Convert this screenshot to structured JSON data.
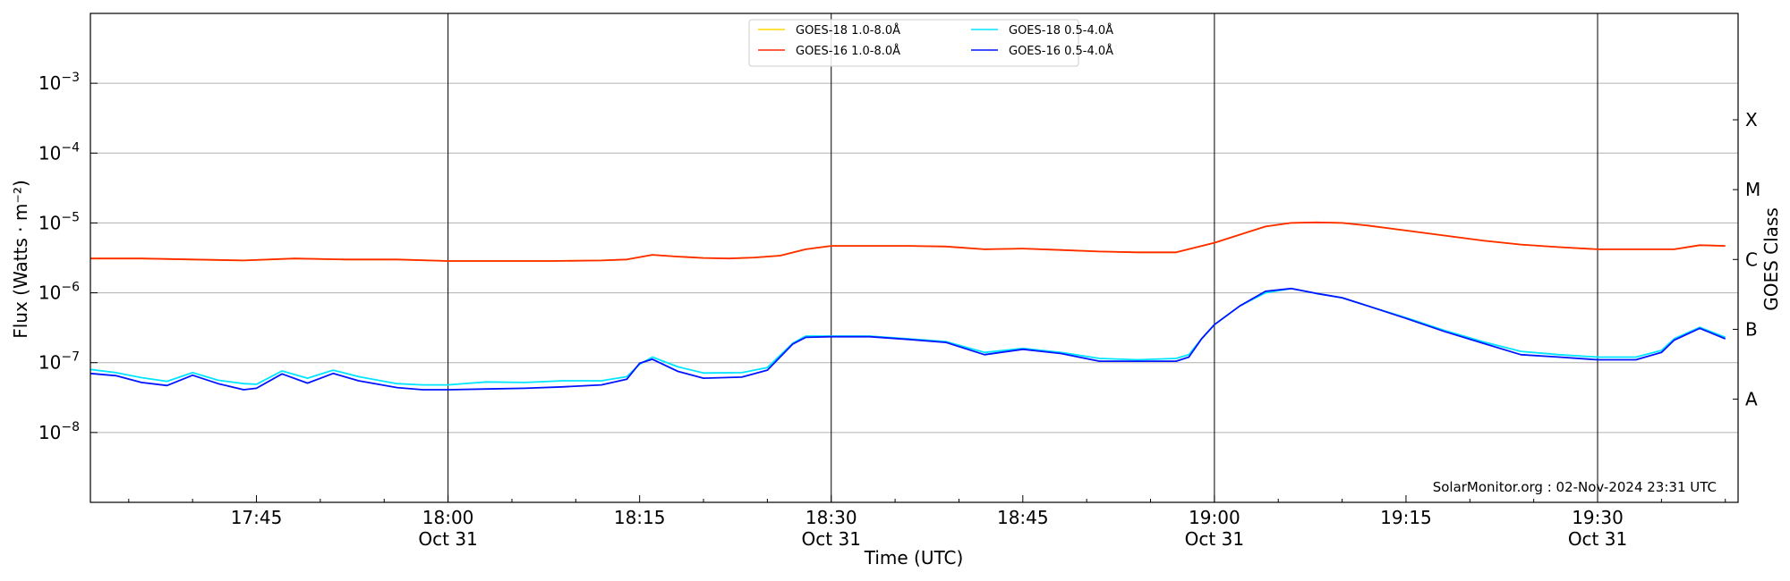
{
  "chart_data": {
    "type": "line",
    "y_scale": "log",
    "ylim": [
      1e-09,
      0.01
    ],
    "xlim": [
      "17:32",
      "19:41"
    ],
    "ylabel": "Flux (Watts · m⁻²)",
    "ylabel_right": "GOES Class",
    "xlabel": "Time (UTC)",
    "credit": "SolarMonitor.org : 02-Nov-2024 23:31 UTC",
    "grid": "horizontal at decades 1e-8 to 1e-3; vertical at 18:00, 18:30, 19:00, 19:30",
    "legend_position": "top-center",
    "x_ticks": [
      {
        "time": "17:45",
        "label": "17:45",
        "sublabel": ""
      },
      {
        "time": "18:00",
        "label": "18:00",
        "sublabel": "Oct 31"
      },
      {
        "time": "18:15",
        "label": "18:15",
        "sublabel": ""
      },
      {
        "time": "18:30",
        "label": "18:30",
        "sublabel": "Oct 31"
      },
      {
        "time": "18:45",
        "label": "18:45",
        "sublabel": ""
      },
      {
        "time": "19:00",
        "label": "19:00",
        "sublabel": "Oct 31"
      },
      {
        "time": "19:15",
        "label": "19:15",
        "sublabel": ""
      },
      {
        "time": "19:30",
        "label": "19:30",
        "sublabel": "Oct 31"
      }
    ],
    "y_ticks": [
      {
        "value": 1e-08,
        "base": "10",
        "exp": "−8"
      },
      {
        "value": 1e-07,
        "base": "10",
        "exp": "−7"
      },
      {
        "value": 1e-06,
        "base": "10",
        "exp": "−6"
      },
      {
        "value": 1e-05,
        "base": "10",
        "exp": "−5"
      },
      {
        "value": 0.0001,
        "base": "10",
        "exp": "−4"
      },
      {
        "value": 0.001,
        "base": "10",
        "exp": "−3"
      }
    ],
    "goes_classes": [
      {
        "label": "A",
        "flux": 3e-08
      },
      {
        "label": "B",
        "flux": 3e-07
      },
      {
        "label": "C",
        "flux": 3e-06
      },
      {
        "label": "M",
        "flux": 3e-05
      },
      {
        "label": "X",
        "flux": 0.0003
      }
    ],
    "series": [
      {
        "name": "GOES-18 1.0-8.0Å",
        "color": "#ffd700",
        "x": [
          "17:32",
          "17:36",
          "17:40",
          "17:44",
          "17:48",
          "17:52",
          "17:56",
          "18:00",
          "18:04",
          "18:08",
          "18:12",
          "18:14",
          "18:16",
          "18:18",
          "18:20",
          "18:22",
          "18:24",
          "18:26",
          "18:28",
          "18:30",
          "18:33",
          "18:36",
          "18:39",
          "18:42",
          "18:45",
          "18:48",
          "18:51",
          "18:54",
          "18:57",
          "19:00",
          "19:02",
          "19:04",
          "19:06",
          "19:08",
          "19:10",
          "19:12",
          "19:15",
          "19:18",
          "19:21",
          "19:24",
          "19:27",
          "19:30",
          "19:33",
          "19:36",
          "19:38",
          "19:40"
        ],
        "y": [
          3.1e-06,
          3.1e-06,
          3e-06,
          2.9e-06,
          3.1e-06,
          3e-06,
          3e-06,
          2.85e-06,
          2.85e-06,
          2.85e-06,
          2.9e-06,
          3e-06,
          3.5e-06,
          3.3e-06,
          3.15e-06,
          3.1e-06,
          3.2e-06,
          3.4e-06,
          4.2e-06,
          4.7e-06,
          4.7e-06,
          4.7e-06,
          4.6e-06,
          4.2e-06,
          4.3e-06,
          4.1e-06,
          3.9e-06,
          3.8e-06,
          3.8e-06,
          5.2e-06,
          6.8e-06,
          8.9e-06,
          1e-05,
          1.02e-05,
          1e-05,
          9.2e-06,
          7.8e-06,
          6.6e-06,
          5.6e-06,
          4.9e-06,
          4.5e-06,
          4.2e-06,
          4.2e-06,
          4.2e-06,
          4.8e-06,
          4.7e-06
        ]
      },
      {
        "name": "GOES-16 1.0-8.0Å",
        "color": "#ff2a00",
        "x": [
          "17:32",
          "17:36",
          "17:40",
          "17:44",
          "17:48",
          "17:52",
          "17:56",
          "18:00",
          "18:04",
          "18:08",
          "18:12",
          "18:14",
          "18:16",
          "18:18",
          "18:20",
          "18:22",
          "18:24",
          "18:26",
          "18:28",
          "18:30",
          "18:33",
          "18:36",
          "18:39",
          "18:42",
          "18:45",
          "18:48",
          "18:51",
          "18:54",
          "18:57",
          "19:00",
          "19:02",
          "19:04",
          "19:06",
          "19:08",
          "19:10",
          "19:12",
          "19:15",
          "19:18",
          "19:21",
          "19:24",
          "19:27",
          "19:30",
          "19:33",
          "19:36",
          "19:38",
          "19:40"
        ],
        "y": [
          3.1e-06,
          3.1e-06,
          3e-06,
          2.9e-06,
          3.1e-06,
          3e-06,
          3e-06,
          2.85e-06,
          2.85e-06,
          2.85e-06,
          2.9e-06,
          3e-06,
          3.5e-06,
          3.3e-06,
          3.15e-06,
          3.1e-06,
          3.2e-06,
          3.4e-06,
          4.2e-06,
          4.7e-06,
          4.7e-06,
          4.7e-06,
          4.6e-06,
          4.2e-06,
          4.3e-06,
          4.1e-06,
          3.9e-06,
          3.8e-06,
          3.8e-06,
          5.2e-06,
          6.8e-06,
          8.9e-06,
          1e-05,
          1.02e-05,
          1e-05,
          9.2e-06,
          7.8e-06,
          6.6e-06,
          5.6e-06,
          4.9e-06,
          4.5e-06,
          4.2e-06,
          4.2e-06,
          4.2e-06,
          4.8e-06,
          4.7e-06
        ]
      },
      {
        "name": "GOES-18 0.5-4.0Å",
        "color": "#00e5ff",
        "x": [
          "17:32",
          "17:34",
          "17:36",
          "17:38",
          "17:40",
          "17:42",
          "17:44",
          "17:45",
          "17:47",
          "17:49",
          "17:51",
          "17:53",
          "17:56",
          "17:58",
          "18:00",
          "18:03",
          "18:06",
          "18:09",
          "18:12",
          "18:14",
          "18:15",
          "18:16",
          "18:18",
          "18:20",
          "18:23",
          "18:25",
          "18:27",
          "18:28",
          "18:30",
          "18:33",
          "18:36",
          "18:39",
          "18:42",
          "18:45",
          "18:48",
          "18:51",
          "18:54",
          "18:57",
          "18:58",
          "18:59",
          "19:00",
          "19:02",
          "19:04",
          "19:06",
          "19:08",
          "19:10",
          "19:12",
          "19:15",
          "19:18",
          "19:21",
          "19:24",
          "19:27",
          "19:30",
          "19:33",
          "19:35",
          "19:36",
          "19:38",
          "19:40"
        ],
        "y": [
          8e-08,
          7.2e-08,
          6.1e-08,
          5.4e-08,
          7.2e-08,
          5.6e-08,
          5e-08,
          4.9e-08,
          7.6e-08,
          6e-08,
          7.8e-08,
          6.3e-08,
          5e-08,
          4.8e-08,
          4.8e-08,
          5.3e-08,
          5.2e-08,
          5.5e-08,
          5.5e-08,
          6.3e-08,
          9.5e-08,
          1.2e-07,
          8.7e-08,
          7.1e-08,
          7.2e-08,
          8.5e-08,
          1.9e-07,
          2.4e-07,
          2.4e-07,
          2.4e-07,
          2.2e-07,
          2e-07,
          1.4e-07,
          1.6e-07,
          1.4e-07,
          1.15e-07,
          1.1e-07,
          1.15e-07,
          1.3e-07,
          2.2e-07,
          3.5e-07,
          6.5e-07,
          1e-06,
          1.15e-06,
          9.8e-07,
          8.5e-07,
          6.5e-07,
          4.4e-07,
          2.9e-07,
          2e-07,
          1.45e-07,
          1.3e-07,
          1.2e-07,
          1.2e-07,
          1.5e-07,
          2.2e-07,
          3.2e-07,
          2.3e-07
        ]
      },
      {
        "name": "GOES-16 0.5-4.0Å",
        "color": "#0014ff",
        "x": [
          "17:32",
          "17:34",
          "17:36",
          "17:38",
          "17:40",
          "17:42",
          "17:44",
          "17:45",
          "17:47",
          "17:49",
          "17:51",
          "17:53",
          "17:56",
          "17:58",
          "18:00",
          "18:03",
          "18:06",
          "18:09",
          "18:12",
          "18:14",
          "18:15",
          "18:16",
          "18:18",
          "18:20",
          "18:23",
          "18:25",
          "18:27",
          "18:28",
          "18:30",
          "18:33",
          "18:36",
          "18:39",
          "18:42",
          "18:45",
          "18:48",
          "18:51",
          "18:54",
          "18:57",
          "18:58",
          "18:59",
          "19:00",
          "19:02",
          "19:04",
          "19:06",
          "19:08",
          "19:10",
          "19:12",
          "19:15",
          "19:18",
          "19:21",
          "19:24",
          "19:27",
          "19:30",
          "19:33",
          "19:35",
          "19:36",
          "19:38",
          "19:40"
        ],
        "y": [
          7e-08,
          6.5e-08,
          5.2e-08,
          4.7e-08,
          6.6e-08,
          5e-08,
          4.1e-08,
          4.3e-08,
          6.9e-08,
          5.1e-08,
          7e-08,
          5.5e-08,
          4.4e-08,
          4.1e-08,
          4.1e-08,
          4.2e-08,
          4.3e-08,
          4.5e-08,
          4.8e-08,
          5.8e-08,
          9.8e-08,
          1.12e-07,
          7.5e-08,
          6e-08,
          6.2e-08,
          7.8e-08,
          1.85e-07,
          2.3e-07,
          2.35e-07,
          2.35e-07,
          2.15e-07,
          1.95e-07,
          1.3e-07,
          1.55e-07,
          1.35e-07,
          1.05e-07,
          1.05e-07,
          1.05e-07,
          1.2e-07,
          2.2e-07,
          3.5e-07,
          6.5e-07,
          1.05e-06,
          1.15e-06,
          9.8e-07,
          8.5e-07,
          6.5e-07,
          4.3e-07,
          2.8e-07,
          1.9e-07,
          1.3e-07,
          1.2e-07,
          1.1e-07,
          1.1e-07,
          1.4e-07,
          2.1e-07,
          3.1e-07,
          2.2e-07
        ]
      }
    ]
  }
}
